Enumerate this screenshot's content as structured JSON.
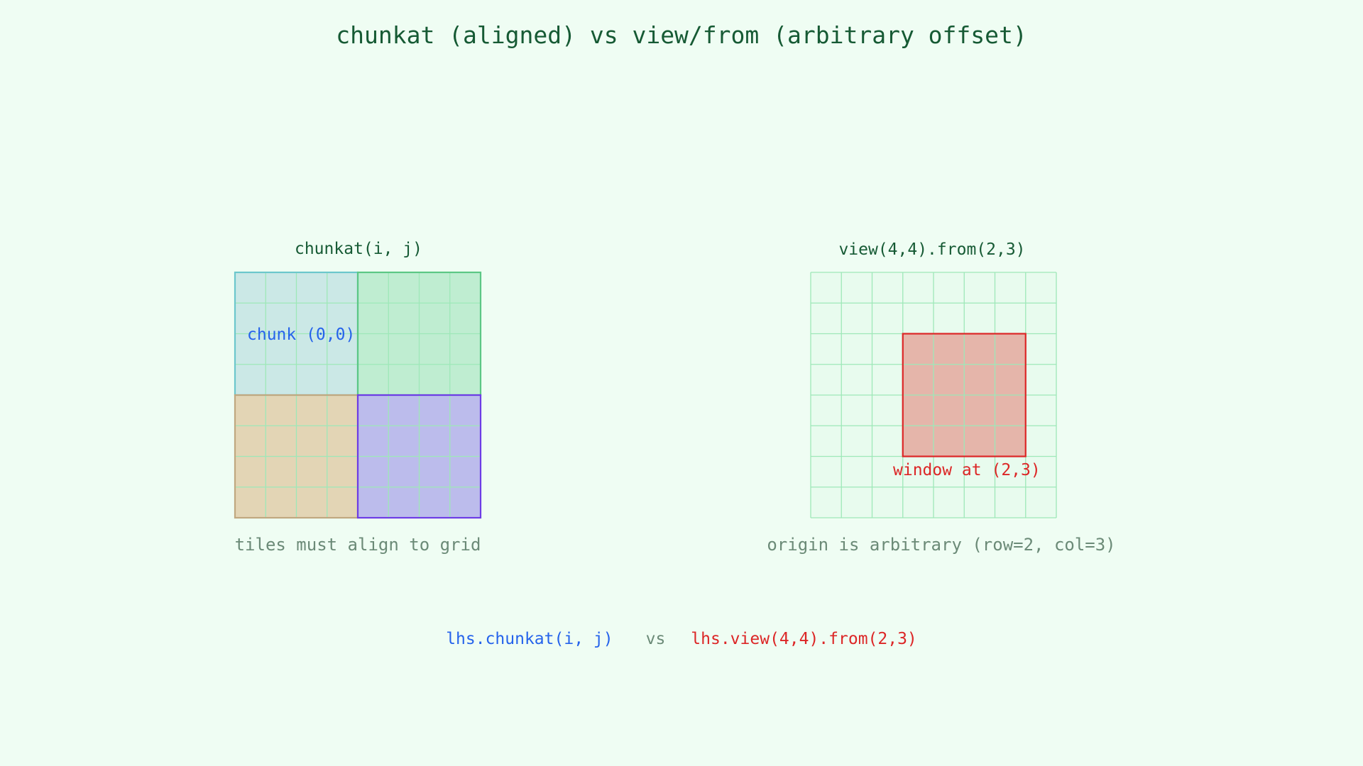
{
  "title": "chunkat (aligned) vs view/from (arbitrary offset)",
  "left_panel": {
    "label": "chunkat(i, j)",
    "chunk_label": "chunk (0,0)",
    "caption": "tiles must align to grid",
    "grid_size": 8,
    "chunk_size": 4,
    "chunks": [
      {
        "row": 0,
        "col": 0,
        "fill": "#cbe8e6",
        "stroke": "#6cc7cc"
      },
      {
        "row": 0,
        "col": 1,
        "fill": "#bfedd1",
        "stroke": "#5cc785"
      },
      {
        "row": 1,
        "col": 0,
        "fill": "#e3d5b5",
        "stroke": "#c0a880"
      },
      {
        "row": 1,
        "col": 1,
        "fill": "#bcbcec",
        "stroke": "#6d3ce6"
      }
    ]
  },
  "right_panel": {
    "label": "view(4,4).from(2,3)",
    "window_label": "window at (2,3)",
    "caption": "origin is arbitrary (row=2, col=3)",
    "grid_size": 8,
    "window": {
      "row": 2,
      "col": 3,
      "rows": 4,
      "cols": 4
    },
    "window_fill": "#e5b5aa",
    "window_stroke": "#dc2626"
  },
  "legend": {
    "left_code": "lhs.chunkat(i, j)",
    "separator": "vs",
    "right_code": "lhs.view(4,4).from(2,3)"
  },
  "colors": {
    "background": "#effdf3",
    "grid_line": "#9ee8b8",
    "grid_cell_fill": "#e8fbee",
    "title": "#165a34",
    "chunk_label": "#2563eb",
    "window_label": "#dc2626",
    "caption": "#6b8a77"
  }
}
